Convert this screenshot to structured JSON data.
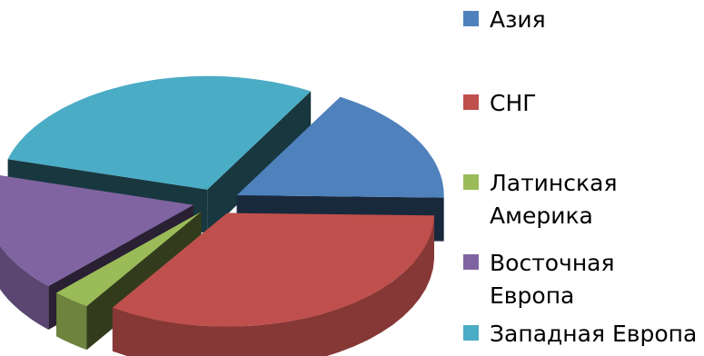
{
  "chart_data": {
    "type": "pie",
    "style": "3d-exploded",
    "title": "",
    "categories": [
      "Азия",
      "СНГ",
      "Латинская Америка",
      "Восточная Европа",
      "Западная Европа"
    ],
    "values": [
      17,
      34,
      3,
      17,
      29
    ],
    "colors": [
      "#4f81bd",
      "#c0504d",
      "#9bbb59",
      "#8064a2",
      "#4bacc6"
    ],
    "legend": {
      "position": "right",
      "entries": [
        {
          "lines": [
            "Азия"
          ]
        },
        {
          "lines": [
            "СНГ"
          ]
        },
        {
          "lines": [
            "Латинская",
            "Америка"
          ]
        },
        {
          "lines": [
            "Восточная",
            "Европа"
          ]
        },
        {
          "lines": [
            "Западная Европа"
          ]
        }
      ]
    }
  }
}
